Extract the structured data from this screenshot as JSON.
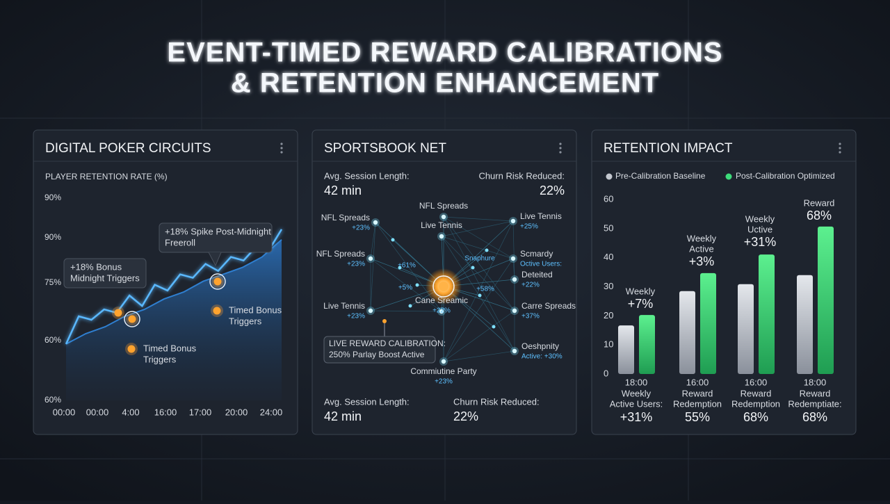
{
  "title_lines": [
    "EVENT-TIMED REWARD CALIBRATIONS",
    "& RETENTION ENHANCEMENT"
  ],
  "panels": [
    {
      "title": "DIGITAL POKER CIRCUITS"
    },
    {
      "title": "SPORTSBOOK NET"
    },
    {
      "title": "RETENTION IMPACT"
    }
  ],
  "chart_data": [
    {
      "type": "line",
      "ylabel": "PLAYER RETENTION RATE (%)",
      "y_labels": [
        "90%",
        "90%",
        "75%",
        "60%",
        "60%"
      ],
      "x_labels": [
        "00:00",
        "00:00",
        "4:00",
        "16:00",
        "17:00",
        "20:00",
        "24:00"
      ],
      "ylim": [
        45,
        97
      ],
      "series": [
        {
          "color": "#5ab8ff",
          "values": [
            59.1,
            66.3,
            65.4,
            68.1,
            67.2,
            71.7,
            69,
            74.5,
            73,
            77.2,
            76.3,
            79.9,
            78.1,
            81.7,
            80.8,
            84.4,
            83.5,
            88.9
          ]
        },
        {
          "color": "#2f7fd0",
          "values": [
            59.1,
            61.8,
            63.6,
            66.3,
            68.1,
            70.8,
            72.6,
            75.4,
            77.2,
            79,
            81.7,
            86.2
          ]
        }
      ],
      "annotations": [
        {
          "lines": [
            "+18% Spike Post-Midnight",
            "Freeroll"
          ]
        },
        {
          "lines": [
            "+18% Bonus",
            "Midnight Triggers"
          ]
        },
        {
          "lines": [
            "Timed Bonus",
            "Triggers"
          ]
        },
        {
          "lines": [
            "Timed Bonus",
            "Triggers"
          ]
        }
      ]
    },
    {
      "type": "bar",
      "categories": [
        "18:00",
        "16:00",
        "16:00",
        "18:00"
      ],
      "category_notes": [
        [
          "Weekly",
          "Active Users:"
        ],
        [
          "Reward",
          "Redemption"
        ],
        [
          "Reward",
          "Redemption"
        ],
        [
          "Reward",
          "Redemptiate:"
        ]
      ],
      "category_values": [
        "+31%",
        "55%",
        "68%",
        "68%"
      ],
      "group_labels": [
        [
          "Weekly",
          "+7%"
        ],
        [
          "Weekly",
          "Active",
          "+3%"
        ],
        [
          "Weekly",
          "Uctive",
          "+31%"
        ],
        [
          "Reward",
          "68%"
        ]
      ],
      "series": [
        {
          "name": "Pre-Calibration Baseline",
          "color": "#c3c7cf",
          "values": [
            16.7,
            28.5,
            30.9,
            34
          ]
        },
        {
          "name": "Post-Calibration Optimized",
          "color": "#3ddc7a",
          "values": [
            20.3,
            34.7,
            41.1,
            50.7
          ]
        }
      ],
      "ylim": [
        0,
        60
      ],
      "yticks": [
        0,
        10,
        20,
        30,
        40,
        50,
        60
      ],
      "legend": "top"
    }
  ],
  "network": {
    "stats_top": [
      {
        "label": "Avg. Session Length:",
        "value": "42 min"
      },
      {
        "label": "Churn Risk Reduced:",
        "value": "22%"
      }
    ],
    "stats_bottom": [
      {
        "label": "Avg. Session Length:",
        "value": "42 min"
      },
      {
        "label": "Churn Risk Reduced:",
        "value": "22%"
      }
    ],
    "nodes": [
      {
        "label": "NFL Spreads",
        "value": "+23%"
      },
      {
        "label": "NFL Spreads"
      },
      {
        "label": "Live Tennis",
        "value": "+25%"
      },
      {
        "label": "NFL Spreads",
        "value": "+23%"
      },
      {
        "label": "Live Tennis"
      },
      {
        "label": "Scmardy",
        "value": "Octive Users:"
      },
      {
        "label": "Live Tennis",
        "value": "+23%"
      },
      {
        "label": "Deteited",
        "value": "+22%"
      },
      {
        "label": "Carre Spreads",
        "value": "+37%"
      },
      {
        "label": "Cane Sreamic",
        "value": "+22%"
      },
      {
        "label": "Commiutine Party",
        "value": "+23%"
      },
      {
        "label": "Oeshpnity",
        "value": "Active: +30%"
      }
    ],
    "inner_labels": [
      "+61%",
      "+5%",
      "+58%",
      "Snaphure"
    ],
    "callout": [
      "LIVE REWARD CALIBRATION:",
      "250% Parlay Boost Active"
    ]
  }
}
